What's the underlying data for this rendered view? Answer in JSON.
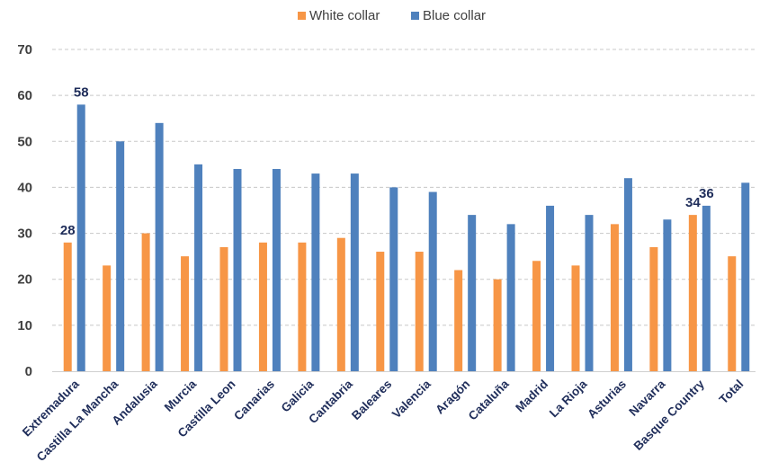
{
  "chart_data": {
    "type": "bar",
    "title": "",
    "xlabel": "",
    "ylabel": "",
    "ylim": [
      0,
      70
    ],
    "yticks": [
      0,
      10,
      20,
      30,
      40,
      50,
      60,
      70
    ],
    "grid": true,
    "legend_position": "top-center",
    "categories": [
      "Extremadura",
      "Castilla La Mancha",
      "Andalusia",
      "Murcia",
      "Castilla Leon",
      "Canarias",
      "Galicia",
      "Cantabria",
      "Baleares",
      "Valencia",
      "Aragón",
      "Cataluña",
      "Madrid",
      "La Rioja",
      "Asturias",
      "Navarra",
      "Basque Country",
      "Total"
    ],
    "series": [
      {
        "name": "White collar",
        "color": "#f79646",
        "values": [
          28,
          23,
          30,
          25,
          27,
          28,
          28,
          29,
          26,
          26,
          22,
          20,
          24,
          23,
          32,
          27,
          34,
          25
        ]
      },
      {
        "name": "Blue collar",
        "color": "#4f81bd",
        "values": [
          58,
          50,
          54,
          45,
          44,
          44,
          43,
          43,
          40,
          39,
          34,
          32,
          36,
          34,
          42,
          33,
          36,
          41
        ]
      }
    ],
    "data_labels": [
      {
        "series": 0,
        "category": "Extremadura",
        "text": "28"
      },
      {
        "series": 1,
        "category": "Extremadura",
        "text": "58"
      },
      {
        "series": 0,
        "category": "Basque Country",
        "text": "34"
      },
      {
        "series": 1,
        "category": "Basque Country",
        "text": "36"
      }
    ]
  }
}
